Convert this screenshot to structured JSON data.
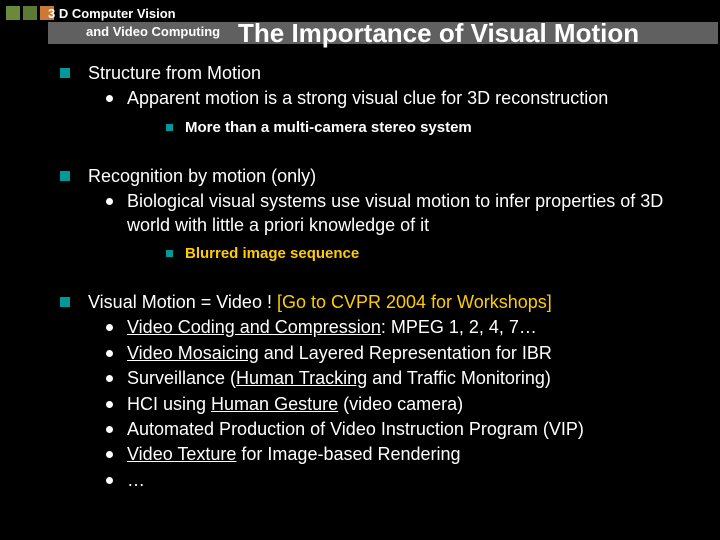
{
  "colors": {
    "background": "#000000",
    "text": "#ffffff",
    "accent_teal": "#009999",
    "accent_yellow": "#ffcc00",
    "gray_bar": "#606060",
    "square1": "#6a8a3a",
    "square2": "#5a7a35",
    "square3": "#cc7a33"
  },
  "header": {
    "lab_title": "3 D Computer Vision",
    "lab_subtitle": "and Video Computing",
    "slide_title": "The Importance of Visual Motion"
  },
  "sections": [
    {
      "title": "Structure from Motion",
      "sub": [
        {
          "text": "Apparent motion is a strong visual clue for 3D reconstruction"
        }
      ],
      "subsub": [
        {
          "text": "More than a multi-camera stereo system",
          "color": "white"
        }
      ]
    },
    {
      "title": "Recognition by motion (only)",
      "sub": [
        {
          "text": "Biological visual systems use visual motion to infer properties of 3D world with little a priori knowledge of it"
        }
      ],
      "subsub": [
        {
          "text": "Blurred image sequence",
          "color": "yellow"
        }
      ]
    },
    {
      "title_plain": "Visual Motion = Video !   ",
      "title_yellow": "[Go to CVPR 2004 for Workshops]",
      "sub": [
        {
          "prefix": "",
          "u": "Video Coding and Compression",
          "suffix": ": MPEG 1, 2, 4, 7…"
        },
        {
          "prefix": "",
          "u": "Video Mosaicing",
          "suffix": " and Layered Representation for IBR"
        },
        {
          "prefix": "Surveillance (",
          "u": "Human Tracking",
          "suffix": " and Traffic Monitoring)"
        },
        {
          "prefix": "HCI using ",
          "u": "Human Gesture",
          "suffix": " (video camera)"
        },
        {
          "text": "Automated Production of Video Instruction Program (VIP)"
        },
        {
          "prefix": "",
          "u": "Video Texture",
          "suffix": " for Image-based Rendering"
        },
        {
          "text": "…"
        }
      ]
    }
  ]
}
